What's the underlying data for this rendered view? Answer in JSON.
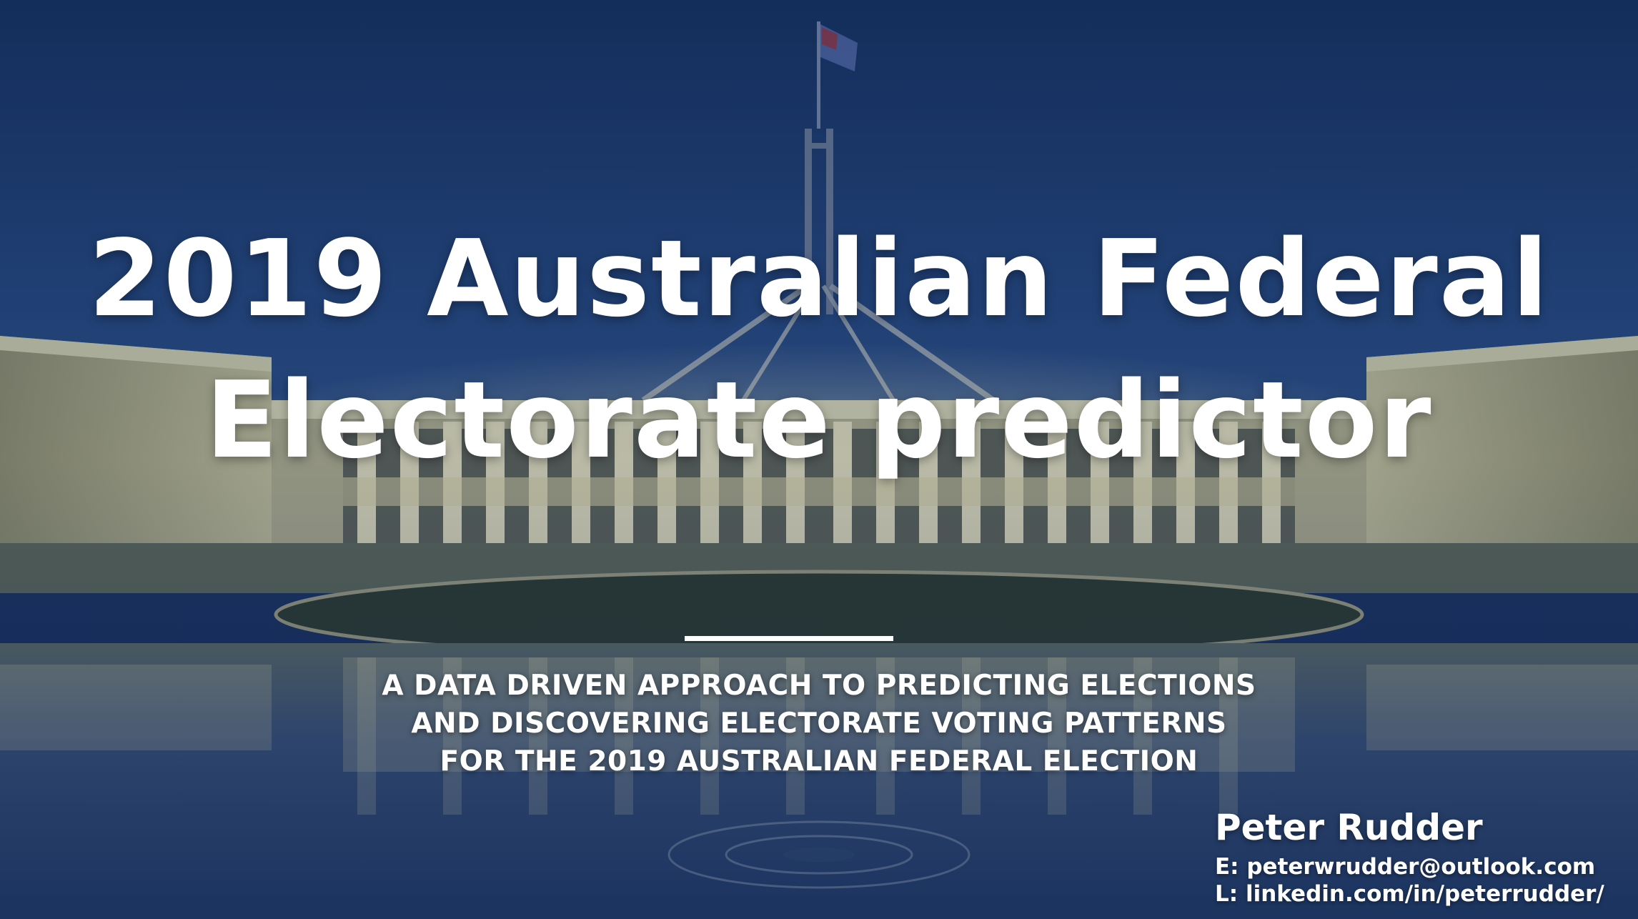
{
  "title": {
    "line1": "2019 Australian Federal",
    "line2": "Electorate predictor"
  },
  "subtitle": {
    "line1": "A DATA DRIVEN APPROACH TO PREDICTING ELECTIONS",
    "line2": "AND DISCOVERING ELECTORATE VOTING PATTERNS",
    "line3": "FOR THE 2019 AUSTRALIAN FEDERAL ELECTION"
  },
  "author": {
    "name": "Peter Rudder",
    "email": "E: peterwrudder@outlook.com",
    "linkedin": "L: linkedin.com/in/peterrudder/"
  },
  "background": {
    "scene": "parliament-house-night-photo",
    "colors": {
      "sky_top": "#1b3566",
      "sky_mid": "#2a4a80",
      "building_light": "#c9c7a6",
      "lawn": "#2c3a2c",
      "water": "#2f4773"
    }
  }
}
